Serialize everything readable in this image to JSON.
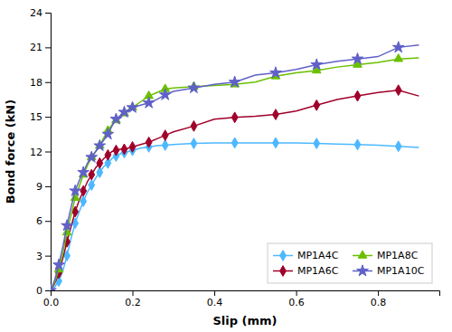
{
  "chart_data": {
    "type": "line",
    "xlabel": "Slip (mm)",
    "ylabel": "Bond force (kN)",
    "xlim": [
      0,
      0.95
    ],
    "ylim": [
      0,
      24
    ],
    "xticks": [
      {
        "value": 0.0,
        "label": "0.0"
      },
      0.2,
      0.4,
      0.6,
      0.8
    ],
    "yticks": [
      0,
      3,
      6,
      9,
      12,
      15,
      18,
      21,
      24
    ],
    "grid": false,
    "legend": "lower right",
    "x": [
      0.0,
      0.01,
      0.02,
      0.03,
      0.04,
      0.05,
      0.06,
      0.07,
      0.08,
      0.09,
      0.1,
      0.11,
      0.12,
      0.13,
      0.14,
      0.15,
      0.16,
      0.17,
      0.18,
      0.19,
      0.2,
      0.22,
      0.24,
      0.26,
      0.28,
      0.3,
      0.35,
      0.4,
      0.45,
      0.5,
      0.55,
      0.6,
      0.65,
      0.7,
      0.75,
      0.8,
      0.85,
      0.9
    ],
    "series": [
      {
        "name": "MP1A4C",
        "color": "#4DB8FF",
        "marker": "diamond",
        "values": [
          0.0,
          0.3,
          0.8,
          1.7,
          3.0,
          4.5,
          5.8,
          6.8,
          7.7,
          8.5,
          9.1,
          9.7,
          10.2,
          10.7,
          11.0,
          11.4,
          11.6,
          11.8,
          11.9,
          12.0,
          12.1,
          12.3,
          12.4,
          12.5,
          12.55,
          12.6,
          12.7,
          12.75,
          12.75,
          12.75,
          12.75,
          12.75,
          12.7,
          12.65,
          12.6,
          12.55,
          12.45,
          12.35
        ]
      },
      {
        "name": "MP1A6C",
        "color": "#A0002A",
        "marker": "diamond",
        "values": [
          0.0,
          0.6,
          1.5,
          2.8,
          4.2,
          5.5,
          6.8,
          7.8,
          8.6,
          9.4,
          10.0,
          10.6,
          11.0,
          11.4,
          11.7,
          12.0,
          12.1,
          12.2,
          12.2,
          12.3,
          12.4,
          12.6,
          12.8,
          13.1,
          13.4,
          13.7,
          14.2,
          14.8,
          14.95,
          15.05,
          15.2,
          15.5,
          16.0,
          16.5,
          16.8,
          17.1,
          17.3,
          16.8
        ]
      },
      {
        "name": "MP1A8C",
        "color": "#6ABF00",
        "marker": "triangle",
        "values": [
          0.0,
          0.7,
          1.8,
          3.2,
          5.0,
          6.5,
          8.0,
          9.0,
          10.0,
          10.8,
          11.5,
          12.0,
          12.5,
          13.2,
          13.8,
          14.3,
          14.7,
          15.0,
          15.3,
          15.6,
          15.8,
          16.3,
          16.8,
          17.1,
          17.4,
          17.5,
          17.6,
          17.7,
          17.8,
          18.0,
          18.5,
          18.8,
          19.0,
          19.3,
          19.5,
          19.7,
          20.0,
          20.1
        ]
      },
      {
        "name": "MP1A10C",
        "color": "#6060C8",
        "marker": "star",
        "values": [
          0.0,
          0.9,
          2.2,
          3.8,
          5.6,
          7.2,
          8.6,
          9.5,
          10.2,
          11.0,
          11.5,
          12.0,
          12.5,
          13.0,
          13.5,
          14.2,
          14.8,
          15.1,
          15.4,
          15.6,
          15.8,
          16.0,
          16.2,
          16.5,
          16.9,
          17.2,
          17.5,
          17.8,
          18.0,
          18.6,
          18.8,
          19.1,
          19.5,
          19.8,
          20.0,
          20.2,
          21.0,
          21.2
        ]
      }
    ]
  }
}
